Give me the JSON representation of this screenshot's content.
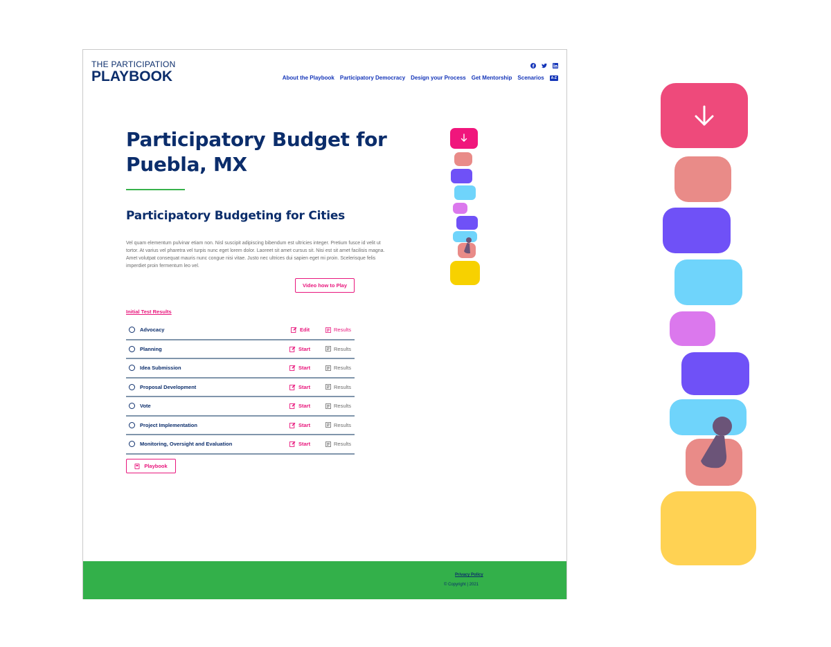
{
  "header": {
    "logo_top": "THE PARTICIPATION",
    "logo_main": "PLAYBOOK",
    "social": [
      "facebook-icon",
      "twitter-icon",
      "linkedin-icon"
    ],
    "nav": [
      "About the Playbook",
      "Participatory Democracy",
      "Design your Process",
      "Get Mentorship",
      "Scenarios"
    ],
    "az_badge": "A-Z"
  },
  "main": {
    "title": "Participatory Budget for Puebla, MX",
    "subtitle": "Participatory Budgeting for Cities",
    "description": "Vel quam elementum pulvinar etiam non. Nisl suscipit adipiscing bibendum est ultricies integer. Pretium fusce id velit ut tortor. At varius vel pharetra vel turpis nunc eget lorem dolor. Laoreet sit amet cursus sit. Nisi est sit amet facilisis magna. Amet volutpat consequat mauris nunc congue nisi vitae. Justo nec ultrices dui sapien eget mi proin. Scelerisque felis imperdiet proin fermentum leo vel.",
    "video_button": "Video how to Play",
    "results_label": "Initial Test Results",
    "stages": [
      {
        "name": "Advocacy",
        "action": "Edit",
        "results": "Results",
        "results_active": true
      },
      {
        "name": "Planning",
        "action": "Start",
        "results": "Results",
        "results_active": false
      },
      {
        "name": "Idea Submission",
        "action": "Start",
        "results": "Results",
        "results_active": false
      },
      {
        "name": "Proposal Development",
        "action": "Start",
        "results": "Results",
        "results_active": false
      },
      {
        "name": "Vote",
        "action": "Start",
        "results": "Results",
        "results_active": false
      },
      {
        "name": "Project Implementation",
        "action": "Start",
        "results": "Results",
        "results_active": false
      },
      {
        "name": "Monitoring, Oversight and Evaluation",
        "action": "Start",
        "results": "Results",
        "results_active": false
      }
    ],
    "playbook_button": "Playbook"
  },
  "footer": {
    "privacy": "Privacy Policy",
    "copyright": "© Copyright  | 2021"
  },
  "colors": {
    "navy": "#0b2d6b",
    "nav_blue": "#1435b8",
    "accent_pink": "#e8167c",
    "rule_green": "#36b24a",
    "footer_green": "#33b04a",
    "stack_colors": [
      "#ee4a7b",
      "#e98b88",
      "#6f51f7",
      "#6fd4fb",
      "#db78ed",
      "#6f51f7",
      "#6fd4fb",
      "#e98b88",
      "#ffd253"
    ],
    "pawn": "#6b5478"
  }
}
